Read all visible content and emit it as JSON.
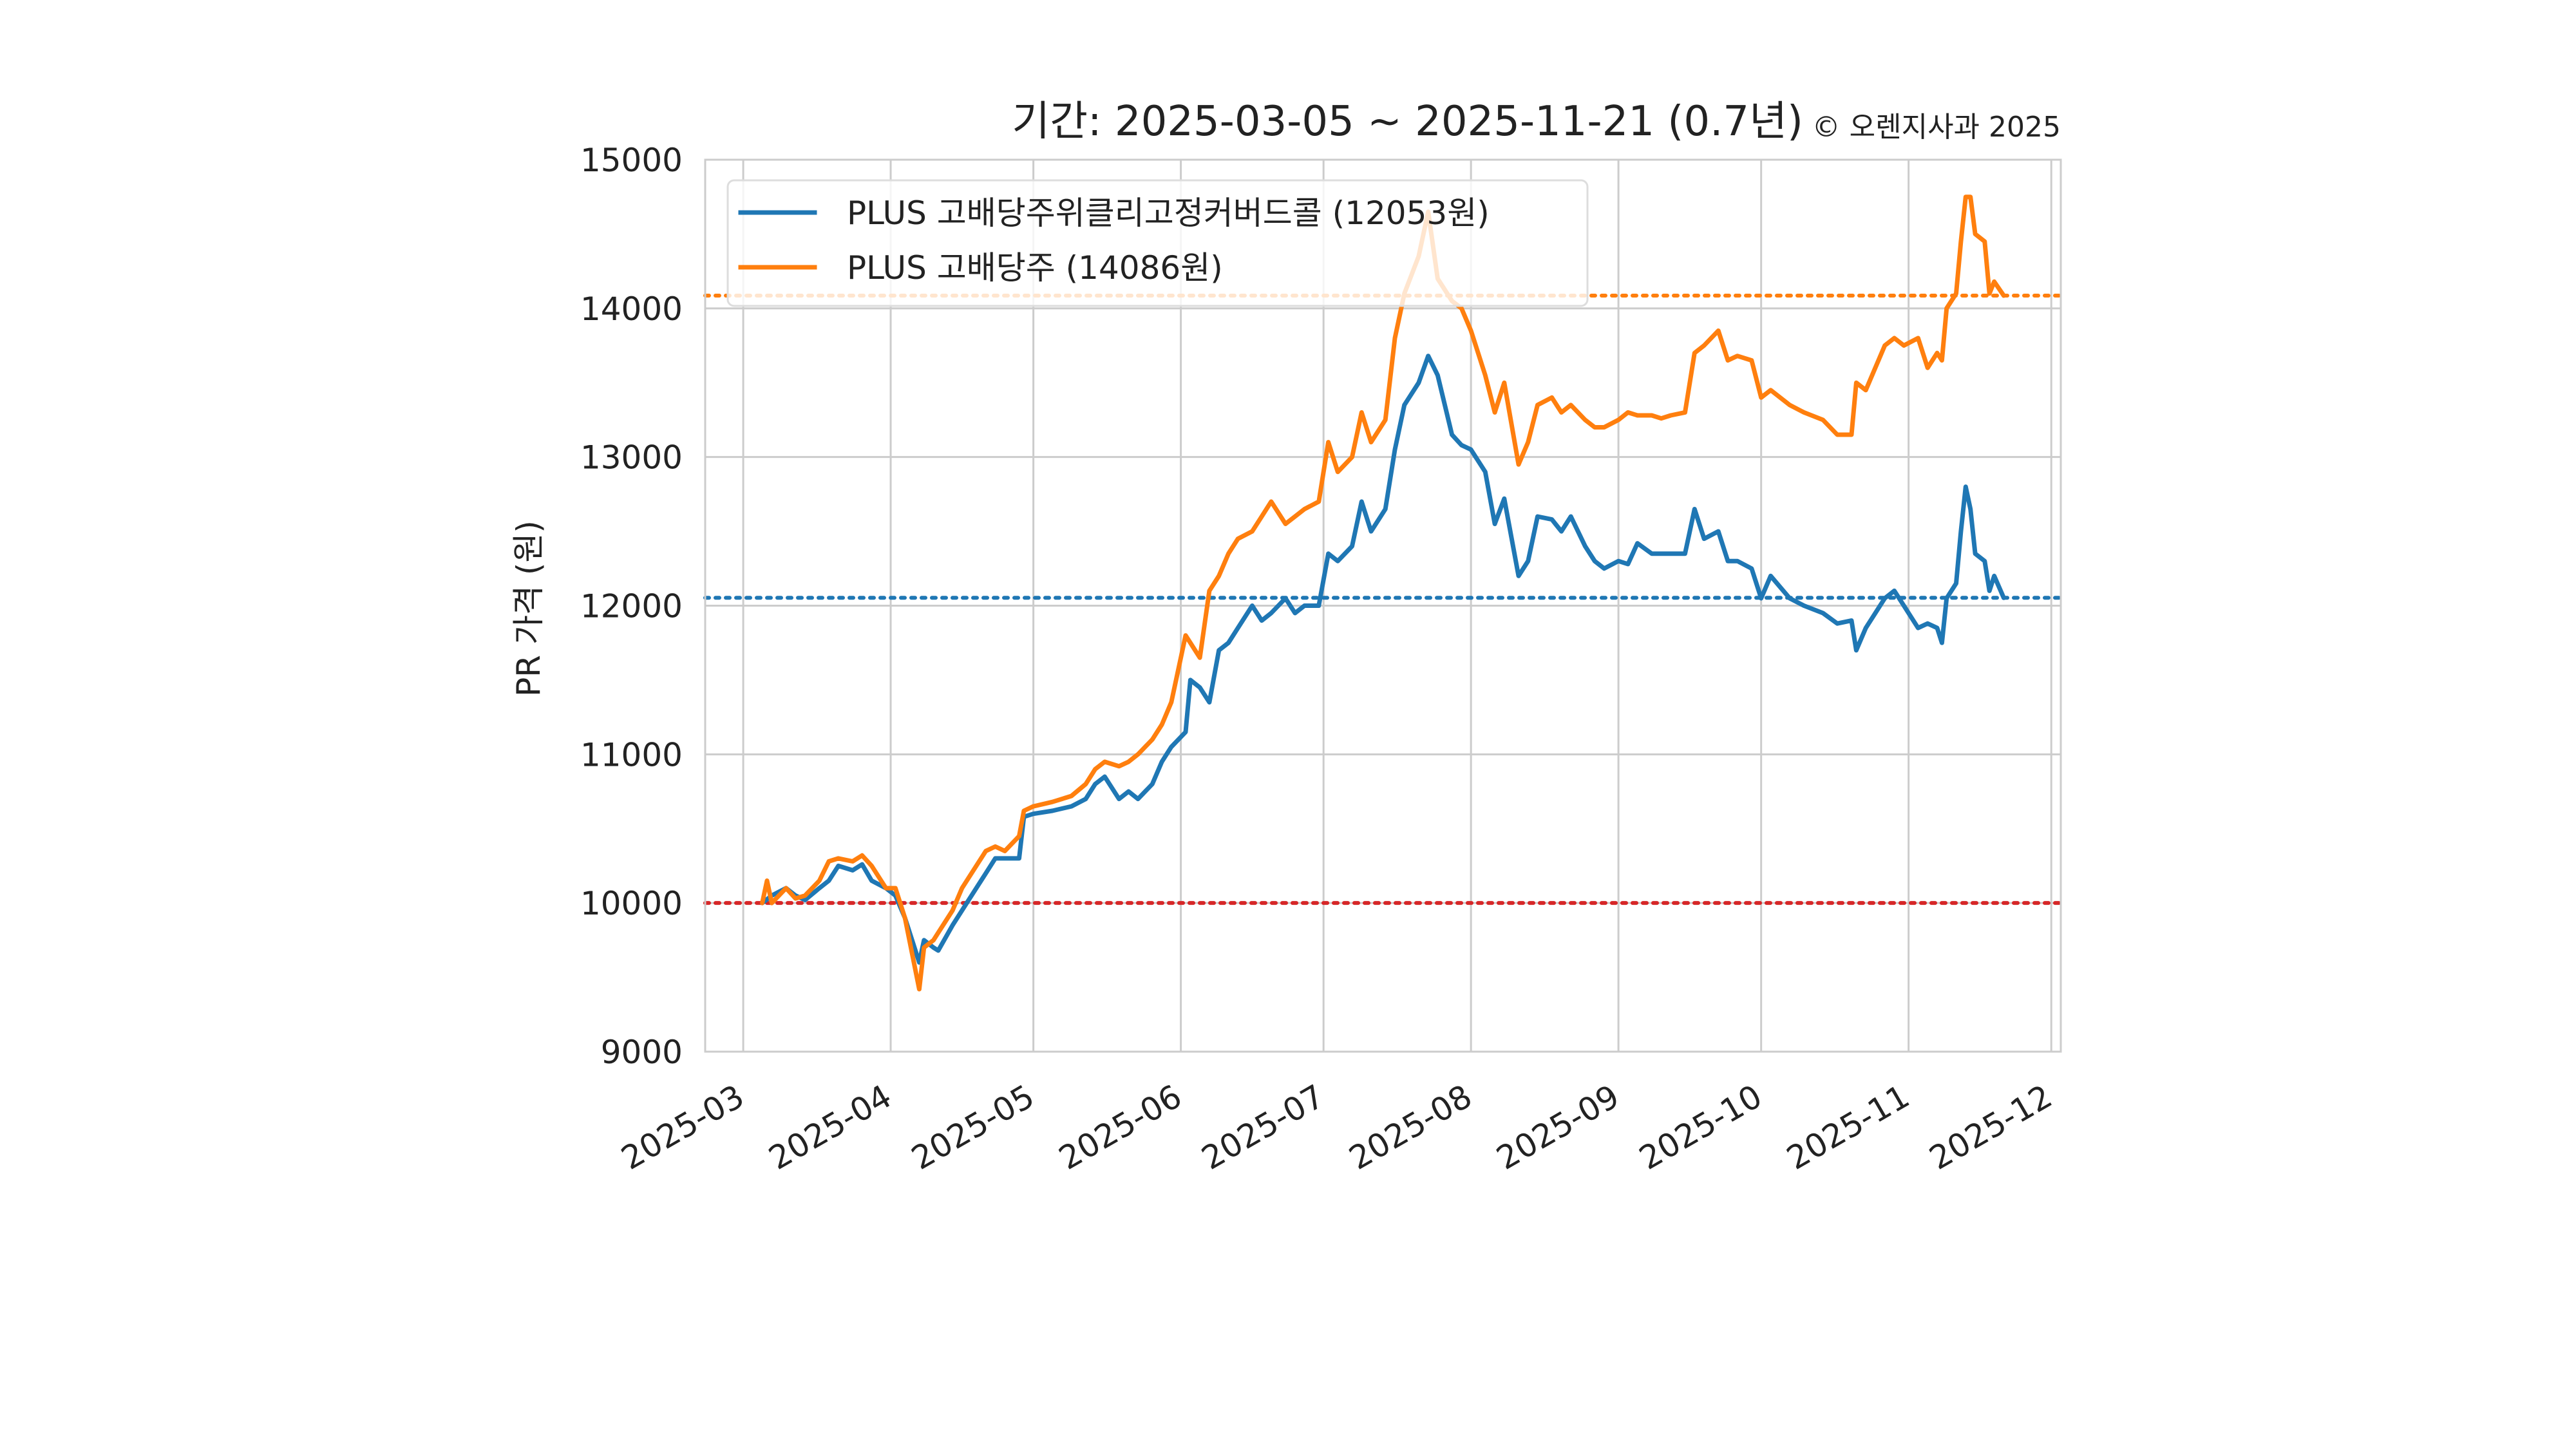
{
  "chart_data": {
    "type": "line",
    "title": "기간: 2025-03-05 ~ 2025-11-21 (0.7년)",
    "copyright": "© 오렌지사과 2025",
    "xlabel": "",
    "ylabel": "PR 가격 (원)",
    "ylim": [
      9000,
      15000
    ],
    "yticks": [
      9000,
      10000,
      11000,
      12000,
      13000,
      14000,
      15000
    ],
    "xlim": [
      "2025-02-21",
      "2025-12-03"
    ],
    "xticks": [
      "2025-03",
      "2025-04",
      "2025-05",
      "2025-06",
      "2025-07",
      "2025-08",
      "2025-09",
      "2025-10",
      "2025-11",
      "2025-12"
    ],
    "grid": true,
    "legend_position": "top-left",
    "colors": {
      "series1": "#1f77b4",
      "series2": "#ff7f0e",
      "baseline": "#d62728"
    },
    "reference_lines": [
      {
        "y": 14086,
        "color": "#ff7f0e",
        "style": "dotted"
      },
      {
        "y": 12053,
        "color": "#1f77b4",
        "style": "dotted"
      },
      {
        "y": 10000,
        "color": "#d62728",
        "style": "dotted"
      }
    ],
    "series": [
      {
        "name": "PLUS 고배당주위클리고정커버드콜 (12053원)",
        "color": "#1f77b4",
        "points": [
          [
            "2025-03-05",
            10000
          ],
          [
            "2025-03-07",
            10050
          ],
          [
            "2025-03-10",
            10100
          ],
          [
            "2025-03-12",
            10050
          ],
          [
            "2025-03-14",
            10020
          ],
          [
            "2025-03-17",
            10100
          ],
          [
            "2025-03-19",
            10150
          ],
          [
            "2025-03-21",
            10250
          ],
          [
            "2025-03-24",
            10220
          ],
          [
            "2025-03-26",
            10260
          ],
          [
            "2025-03-28",
            10150
          ],
          [
            "2025-03-31",
            10100
          ],
          [
            "2025-04-02",
            10050
          ],
          [
            "2025-04-04",
            9900
          ],
          [
            "2025-04-07",
            9600
          ],
          [
            "2025-04-08",
            9750
          ],
          [
            "2025-04-10",
            9700
          ],
          [
            "2025-04-11",
            9680
          ],
          [
            "2025-04-14",
            9850
          ],
          [
            "2025-04-16",
            9950
          ],
          [
            "2025-04-18",
            10050
          ],
          [
            "2025-04-21",
            10200
          ],
          [
            "2025-04-23",
            10300
          ],
          [
            "2025-04-25",
            10300
          ],
          [
            "2025-04-28",
            10300
          ],
          [
            "2025-04-29",
            10580
          ],
          [
            "2025-05-01",
            10600
          ],
          [
            "2025-05-05",
            10620
          ],
          [
            "2025-05-09",
            10650
          ],
          [
            "2025-05-12",
            10700
          ],
          [
            "2025-05-14",
            10800
          ],
          [
            "2025-05-16",
            10850
          ],
          [
            "2025-05-19",
            10700
          ],
          [
            "2025-05-21",
            10750
          ],
          [
            "2025-05-23",
            10700
          ],
          [
            "2025-05-26",
            10800
          ],
          [
            "2025-05-28",
            10950
          ],
          [
            "2025-05-30",
            11050
          ],
          [
            "2025-06-02",
            11150
          ],
          [
            "2025-06-03",
            11500
          ],
          [
            "2025-06-05",
            11450
          ],
          [
            "2025-06-07",
            11350
          ],
          [
            "2025-06-09",
            11700
          ],
          [
            "2025-06-11",
            11750
          ],
          [
            "2025-06-13",
            11850
          ],
          [
            "2025-06-16",
            12000
          ],
          [
            "2025-06-18",
            11900
          ],
          [
            "2025-06-20",
            11950
          ],
          [
            "2025-06-23",
            12050
          ],
          [
            "2025-06-25",
            11950
          ],
          [
            "2025-06-27",
            12000
          ],
          [
            "2025-06-30",
            12000
          ],
          [
            "2025-07-02",
            12350
          ],
          [
            "2025-07-04",
            12300
          ],
          [
            "2025-07-07",
            12400
          ],
          [
            "2025-07-09",
            12700
          ],
          [
            "2025-07-11",
            12500
          ],
          [
            "2025-07-14",
            12650
          ],
          [
            "2025-07-16",
            13050
          ],
          [
            "2025-07-18",
            13350
          ],
          [
            "2025-07-21",
            13500
          ],
          [
            "2025-07-23",
            13680
          ],
          [
            "2025-07-25",
            13550
          ],
          [
            "2025-07-28",
            13150
          ],
          [
            "2025-07-30",
            13080
          ],
          [
            "2025-08-01",
            13050
          ],
          [
            "2025-08-04",
            12900
          ],
          [
            "2025-08-06",
            12550
          ],
          [
            "2025-08-08",
            12720
          ],
          [
            "2025-08-11",
            12200
          ],
          [
            "2025-08-13",
            12300
          ],
          [
            "2025-08-15",
            12600
          ],
          [
            "2025-08-18",
            12580
          ],
          [
            "2025-08-20",
            12500
          ],
          [
            "2025-08-22",
            12600
          ],
          [
            "2025-08-25",
            12400
          ],
          [
            "2025-08-27",
            12300
          ],
          [
            "2025-08-29",
            12250
          ],
          [
            "2025-09-01",
            12300
          ],
          [
            "2025-09-03",
            12280
          ],
          [
            "2025-09-05",
            12420
          ],
          [
            "2025-09-08",
            12350
          ],
          [
            "2025-09-10",
            12350
          ],
          [
            "2025-09-12",
            12350
          ],
          [
            "2025-09-15",
            12350
          ],
          [
            "2025-09-17",
            12650
          ],
          [
            "2025-09-19",
            12450
          ],
          [
            "2025-09-22",
            12500
          ],
          [
            "2025-09-24",
            12300
          ],
          [
            "2025-09-26",
            12300
          ],
          [
            "2025-09-29",
            12250
          ],
          [
            "2025-10-01",
            12050
          ],
          [
            "2025-10-03",
            12200
          ],
          [
            "2025-10-07",
            12050
          ],
          [
            "2025-10-10",
            12000
          ],
          [
            "2025-10-14",
            11950
          ],
          [
            "2025-10-17",
            11880
          ],
          [
            "2025-10-20",
            11900
          ],
          [
            "2025-10-21",
            11700
          ],
          [
            "2025-10-23",
            11850
          ],
          [
            "2025-10-27",
            12050
          ],
          [
            "2025-10-29",
            12100
          ],
          [
            "2025-10-31",
            12000
          ],
          [
            "2025-11-03",
            11850
          ],
          [
            "2025-11-05",
            11880
          ],
          [
            "2025-11-07",
            11850
          ],
          [
            "2025-11-08",
            11750
          ],
          [
            "2025-11-09",
            12050
          ],
          [
            "2025-11-11",
            12150
          ],
          [
            "2025-11-12",
            12500
          ],
          [
            "2025-11-13",
            12800
          ],
          [
            "2025-11-14",
            12650
          ],
          [
            "2025-11-15",
            12350
          ],
          [
            "2025-11-17",
            12300
          ],
          [
            "2025-11-18",
            12100
          ],
          [
            "2025-11-19",
            12200
          ],
          [
            "2025-11-21",
            12053
          ]
        ]
      },
      {
        "name": "PLUS 고배당주 (14086원)",
        "color": "#ff7f0e",
        "points": [
          [
            "2025-03-05",
            10000
          ],
          [
            "2025-03-06",
            10150
          ],
          [
            "2025-03-07",
            10000
          ],
          [
            "2025-03-10",
            10100
          ],
          [
            "2025-03-12",
            10030
          ],
          [
            "2025-03-14",
            10050
          ],
          [
            "2025-03-17",
            10150
          ],
          [
            "2025-03-19",
            10280
          ],
          [
            "2025-03-21",
            10300
          ],
          [
            "2025-03-24",
            10280
          ],
          [
            "2025-03-26",
            10320
          ],
          [
            "2025-03-28",
            10250
          ],
          [
            "2025-03-31",
            10100
          ],
          [
            "2025-04-02",
            10100
          ],
          [
            "2025-04-04",
            9900
          ],
          [
            "2025-04-07",
            9420
          ],
          [
            "2025-04-08",
            9700
          ],
          [
            "2025-04-10",
            9750
          ],
          [
            "2025-04-11",
            9800
          ],
          [
            "2025-04-14",
            9950
          ],
          [
            "2025-04-16",
            10100
          ],
          [
            "2025-04-18",
            10200
          ],
          [
            "2025-04-21",
            10350
          ],
          [
            "2025-04-23",
            10380
          ],
          [
            "2025-04-25",
            10350
          ],
          [
            "2025-04-28",
            10450
          ],
          [
            "2025-04-29",
            10620
          ],
          [
            "2025-05-01",
            10650
          ],
          [
            "2025-05-05",
            10680
          ],
          [
            "2025-05-09",
            10720
          ],
          [
            "2025-05-12",
            10800
          ],
          [
            "2025-05-14",
            10900
          ],
          [
            "2025-05-16",
            10950
          ],
          [
            "2025-05-19",
            10920
          ],
          [
            "2025-05-21",
            10950
          ],
          [
            "2025-05-23",
            11000
          ],
          [
            "2025-05-26",
            11100
          ],
          [
            "2025-05-28",
            11200
          ],
          [
            "2025-05-30",
            11350
          ],
          [
            "2025-06-02",
            11800
          ],
          [
            "2025-06-03",
            11750
          ],
          [
            "2025-06-05",
            11650
          ],
          [
            "2025-06-07",
            12100
          ],
          [
            "2025-06-09",
            12200
          ],
          [
            "2025-06-11",
            12350
          ],
          [
            "2025-06-13",
            12450
          ],
          [
            "2025-06-16",
            12500
          ],
          [
            "2025-06-18",
            12600
          ],
          [
            "2025-06-20",
            12700
          ],
          [
            "2025-06-23",
            12550
          ],
          [
            "2025-06-25",
            12600
          ],
          [
            "2025-06-27",
            12650
          ],
          [
            "2025-06-30",
            12700
          ],
          [
            "2025-07-02",
            13100
          ],
          [
            "2025-07-04",
            12900
          ],
          [
            "2025-07-07",
            13000
          ],
          [
            "2025-07-09",
            13300
          ],
          [
            "2025-07-11",
            13100
          ],
          [
            "2025-07-14",
            13250
          ],
          [
            "2025-07-16",
            13800
          ],
          [
            "2025-07-18",
            14100
          ],
          [
            "2025-07-21",
            14350
          ],
          [
            "2025-07-23",
            14650
          ],
          [
            "2025-07-25",
            14200
          ],
          [
            "2025-07-28",
            14050
          ],
          [
            "2025-07-30",
            14000
          ],
          [
            "2025-08-01",
            13850
          ],
          [
            "2025-08-04",
            13550
          ],
          [
            "2025-08-06",
            13300
          ],
          [
            "2025-08-08",
            13500
          ],
          [
            "2025-08-11",
            12950
          ],
          [
            "2025-08-13",
            13100
          ],
          [
            "2025-08-15",
            13350
          ],
          [
            "2025-08-18",
            13400
          ],
          [
            "2025-08-20",
            13300
          ],
          [
            "2025-08-22",
            13350
          ],
          [
            "2025-08-25",
            13250
          ],
          [
            "2025-08-27",
            13200
          ],
          [
            "2025-08-29",
            13200
          ],
          [
            "2025-09-01",
            13250
          ],
          [
            "2025-09-03",
            13300
          ],
          [
            "2025-09-05",
            13280
          ],
          [
            "2025-09-08",
            13280
          ],
          [
            "2025-09-10",
            13260
          ],
          [
            "2025-09-12",
            13280
          ],
          [
            "2025-09-15",
            13300
          ],
          [
            "2025-09-17",
            13700
          ],
          [
            "2025-09-19",
            13750
          ],
          [
            "2025-09-22",
            13850
          ],
          [
            "2025-09-24",
            13650
          ],
          [
            "2025-09-26",
            13680
          ],
          [
            "2025-09-29",
            13650
          ],
          [
            "2025-10-01",
            13400
          ],
          [
            "2025-10-03",
            13450
          ],
          [
            "2025-10-07",
            13350
          ],
          [
            "2025-10-10",
            13300
          ],
          [
            "2025-10-14",
            13250
          ],
          [
            "2025-10-17",
            13150
          ],
          [
            "2025-10-20",
            13150
          ],
          [
            "2025-10-21",
            13500
          ],
          [
            "2025-10-23",
            13450
          ],
          [
            "2025-10-27",
            13750
          ],
          [
            "2025-10-29",
            13800
          ],
          [
            "2025-10-31",
            13750
          ],
          [
            "2025-11-03",
            13800
          ],
          [
            "2025-11-05",
            13600
          ],
          [
            "2025-11-07",
            13700
          ],
          [
            "2025-11-08",
            13650
          ],
          [
            "2025-11-09",
            14000
          ],
          [
            "2025-11-11",
            14100
          ],
          [
            "2025-11-12",
            14450
          ],
          [
            "2025-11-13",
            14750
          ],
          [
            "2025-11-14",
            14750
          ],
          [
            "2025-11-15",
            14500
          ],
          [
            "2025-11-17",
            14450
          ],
          [
            "2025-11-18",
            14100
          ],
          [
            "2025-11-19",
            14180
          ],
          [
            "2025-11-21",
            14086
          ]
        ]
      }
    ]
  }
}
